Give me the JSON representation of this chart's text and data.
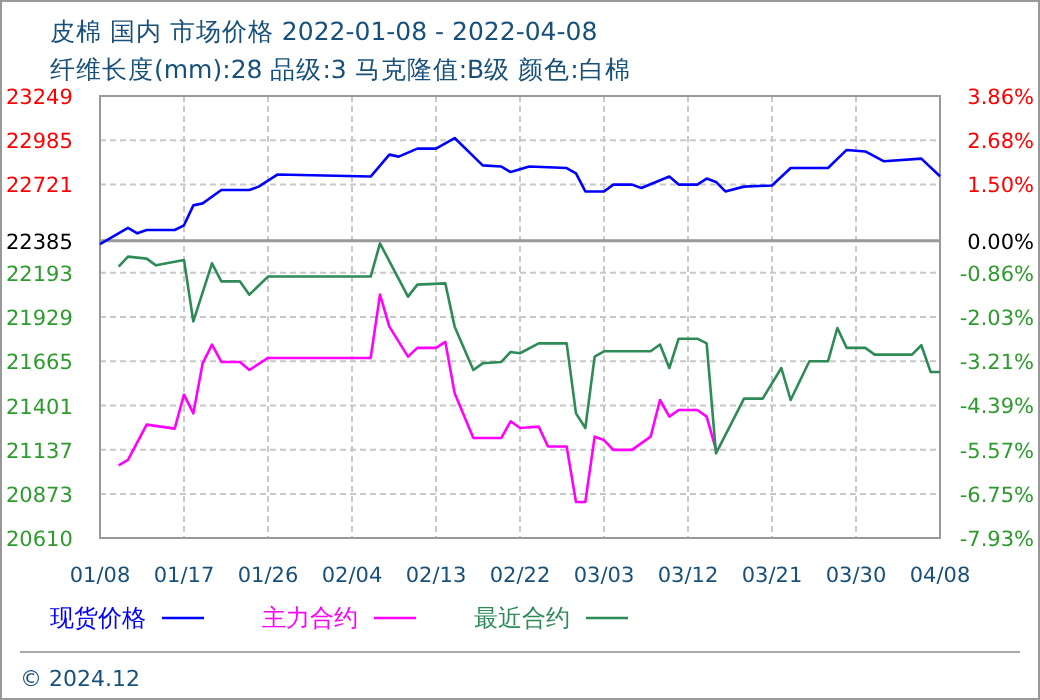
{
  "chart_data": {
    "type": "line",
    "title": "皮棉 国内 市场价格 2022-01-08 - 2022-04-08",
    "subtitle": "纤维长度(mm):28 品级:3 马克隆值:B级 颜色:白棉",
    "annotations": [
      "© 2024.12"
    ],
    "xlim": [
      "2022-01-08",
      "2022-04-08"
    ],
    "xticks": [
      {
        "value": "2022-01-08",
        "label": "01/08"
      },
      {
        "value": "2022-01-17",
        "label": "01/17"
      },
      {
        "value": "2022-01-26",
        "label": "01/26"
      },
      {
        "value": "2022-02-04",
        "label": "02/04"
      },
      {
        "value": "2022-02-13",
        "label": "02/13"
      },
      {
        "value": "2022-02-22",
        "label": "02/22"
      },
      {
        "value": "2022-03-03",
        "label": "03/03"
      },
      {
        "value": "2022-03-12",
        "label": "03/12"
      },
      {
        "value": "2022-03-21",
        "label": "03/21"
      },
      {
        "value": "2022-03-30",
        "label": "03/30"
      },
      {
        "value": "2022-04-08",
        "label": "04/08"
      }
    ],
    "ylim": [
      20610,
      23249
    ],
    "yticks": [
      20610,
      20873,
      21137,
      21401,
      21665,
      21929,
      22193,
      22385,
      22721,
      22985,
      23249
    ],
    "y2lim": [
      -7.93,
      3.86
    ],
    "y2ticks": [
      {
        "value": -7.93,
        "label": "-7.93%"
      },
      {
        "value": -6.75,
        "label": "-6.75%"
      },
      {
        "value": -5.57,
        "label": "-5.57%"
      },
      {
        "value": -4.39,
        "label": "-4.39%"
      },
      {
        "value": -3.21,
        "label": "-3.21%"
      },
      {
        "value": -2.03,
        "label": "-2.03%"
      },
      {
        "value": -0.86,
        "label": "-0.86%"
      },
      {
        "value": 0,
        "label": "0.00%"
      },
      {
        "value": 1.5,
        "label": "1.50%"
      },
      {
        "value": 2.68,
        "label": "2.68%"
      },
      {
        "value": 3.86,
        "label": "3.86%"
      }
    ],
    "ref_lines": [
      {
        "axis": "y",
        "value": 22385,
        "color": "#999999"
      }
    ],
    "grid": true,
    "legend": "bottom",
    "series": [
      {
        "name": "现货价格",
        "color": "#0000ff",
        "x": [
          "2022-01-08",
          "2022-01-11",
          "2022-01-12",
          "2022-01-13",
          "2022-01-16",
          "2022-01-17",
          "2022-01-18",
          "2022-01-19",
          "2022-01-21",
          "2022-01-24",
          "2022-01-25",
          "2022-01-27",
          "2022-02-06",
          "2022-02-08",
          "2022-02-09",
          "2022-02-11",
          "2022-02-13",
          "2022-02-15",
          "2022-02-18",
          "2022-02-20",
          "2022-02-21",
          "2022-02-23",
          "2022-02-27",
          "2022-02-28",
          "2022-03-01",
          "2022-03-03",
          "2022-03-04",
          "2022-03-06",
          "2022-03-07",
          "2022-03-10",
          "2022-03-11",
          "2022-03-13",
          "2022-03-14",
          "2022-03-15",
          "2022-03-16",
          "2022-03-18",
          "2022-03-21",
          "2022-03-23",
          "2022-03-27",
          "2022-03-29",
          "2022-03-31",
          "2022-04-02",
          "2022-04-06",
          "2022-04-08"
        ],
        "values": [
          22365,
          22461,
          22429,
          22449,
          22449,
          22477,
          22596,
          22608,
          22688,
          22688,
          22708,
          22780,
          22768,
          22899,
          22887,
          22935,
          22935,
          22998,
          22835,
          22828,
          22795,
          22828,
          22819,
          22787,
          22679,
          22679,
          22720,
          22720,
          22700,
          22768,
          22720,
          22720,
          22756,
          22736,
          22679,
          22708,
          22715,
          22819,
          22819,
          22927,
          22918,
          22859,
          22875,
          22770
        ]
      },
      {
        "name": "主力合约",
        "color": "#ff00ff",
        "x": [
          "2022-01-10",
          "2022-01-11",
          "2022-01-13",
          "2022-01-16",
          "2022-01-17",
          "2022-01-18",
          "2022-01-19",
          "2022-01-20",
          "2022-01-21",
          "2022-01-23",
          "2022-01-24",
          "2022-01-26",
          "2022-02-06",
          "2022-02-07",
          "2022-02-08",
          "2022-02-10",
          "2022-02-11",
          "2022-02-13",
          "2022-02-14",
          "2022-02-15",
          "2022-02-17",
          "2022-02-20",
          "2022-02-21",
          "2022-02-22",
          "2022-02-24",
          "2022-02-25",
          "2022-02-27",
          "2022-02-28",
          "2022-03-01",
          "2022-03-02",
          "2022-03-03",
          "2022-03-04",
          "2022-03-06",
          "2022-03-08",
          "2022-03-09",
          "2022-03-10",
          "2022-03-11",
          "2022-03-13",
          "2022-03-14",
          "2022-03-15"
        ],
        "values": [
          21044,
          21076,
          21287,
          21263,
          21466,
          21354,
          21653,
          21765,
          21661,
          21661,
          21613,
          21685,
          21685,
          22063,
          21872,
          21693,
          21745,
          21745,
          21781,
          21474,
          21207,
          21207,
          21307,
          21267,
          21275,
          21156,
          21156,
          20825,
          20825,
          21215,
          21195,
          21136,
          21136,
          21215,
          21434,
          21335,
          21374,
          21374,
          21335,
          21136
        ]
      },
      {
        "name": "最近合约",
        "color": "#2e8b57",
        "x": [
          "2022-01-10",
          "2022-01-11",
          "2022-01-13",
          "2022-01-14",
          "2022-01-17",
          "2022-01-18",
          "2022-01-20",
          "2022-01-21",
          "2022-01-23",
          "2022-01-24",
          "2022-01-26",
          "2022-02-06",
          "2022-02-07",
          "2022-02-10",
          "2022-02-11",
          "2022-02-14",
          "2022-02-15",
          "2022-02-17",
          "2022-02-18",
          "2022-02-20",
          "2022-02-21",
          "2022-02-22",
          "2022-02-24",
          "2022-02-27",
          "2022-02-28",
          "2022-03-01",
          "2022-03-02",
          "2022-03-03",
          "2022-03-08",
          "2022-03-09",
          "2022-03-10",
          "2022-03-11",
          "2022-03-13",
          "2022-03-14",
          "2022-03-15",
          "2022-03-18",
          "2022-03-20",
          "2022-03-22",
          "2022-03-23",
          "2022-03-25",
          "2022-03-27",
          "2022-03-28",
          "2022-03-29",
          "2022-03-31",
          "2022-04-01",
          "2022-04-05",
          "2022-04-06",
          "2022-04-07",
          "2022-04-08"
        ],
        "values": [
          22230,
          22290,
          22278,
          22238,
          22270,
          21903,
          22250,
          22142,
          22142,
          22063,
          22171,
          22171,
          22369,
          22051,
          22123,
          22130,
          21872,
          21613,
          21653,
          21661,
          21721,
          21713,
          21772,
          21772,
          21354,
          21267,
          21693,
          21725,
          21725,
          21765,
          21625,
          21800,
          21800,
          21772,
          21115,
          21442,
          21442,
          21625,
          21434,
          21665,
          21665,
          21864,
          21745,
          21745,
          21705,
          21705,
          21761,
          21601,
          21601
        ]
      }
    ]
  }
}
